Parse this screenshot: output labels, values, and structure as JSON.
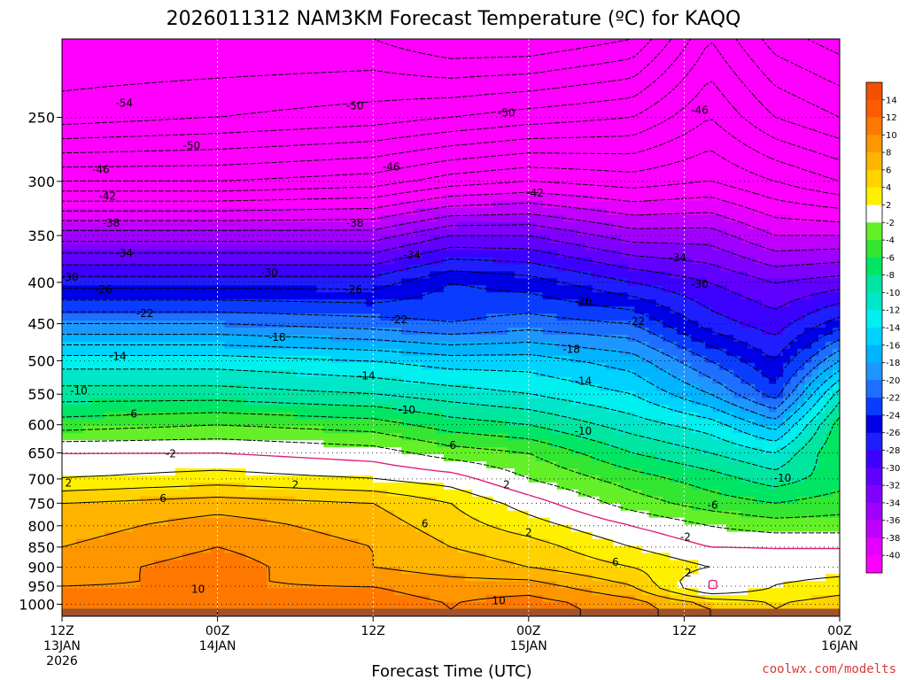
{
  "chart_data": {
    "type": "heatmap",
    "title": "2026011312 NAM3KM Forecast Temperature (ºC) for KAQQ",
    "xlabel": "Forecast Time (UTC)",
    "ylabel": "",
    "y_scale": "log-pressure",
    "ylim": [
      1035,
      200
    ],
    "xlim": [
      0,
      60
    ],
    "yticks": [
      250,
      300,
      350,
      400,
      450,
      500,
      550,
      600,
      650,
      700,
      750,
      800,
      850,
      900,
      950,
      1000
    ],
    "ytick_labels": [
      "250",
      "300",
      "350",
      "400",
      "450",
      "500",
      "550",
      "600",
      "650",
      "700",
      "750",
      "800",
      "850",
      "900",
      "950",
      "1000"
    ],
    "xticks": [
      {
        "hour": 0,
        "l1": "12Z",
        "l2": "13JAN",
        "l3": "2026"
      },
      {
        "hour": 12,
        "l1": "00Z",
        "l2": "14JAN",
        "l3": ""
      },
      {
        "hour": 24,
        "l1": "12Z",
        "l2": "",
        "l3": ""
      },
      {
        "hour": 36,
        "l1": "00Z",
        "l2": "15JAN",
        "l3": ""
      },
      {
        "hour": 48,
        "l1": "12Z",
        "l2": "",
        "l3": ""
      },
      {
        "hour": 60,
        "l1": "00Z",
        "l2": "16JAN",
        "l3": ""
      }
    ],
    "grid": "dotted",
    "colorbar": {
      "position": "right",
      "levels": [
        -40,
        -38,
        -36,
        -34,
        -32,
        -30,
        -28,
        -26,
        -24,
        -22,
        -20,
        -18,
        -16,
        -14,
        -12,
        -10,
        -8,
        -6,
        -4,
        -2,
        2,
        4,
        6,
        8,
        10,
        12,
        14
      ],
      "labels": [
        "14",
        "12",
        "10",
        "8",
        "6",
        "4",
        "2",
        "-2",
        "-4",
        "-6",
        "-8",
        "-10",
        "-12",
        "-14",
        "-16",
        "-18",
        "-20",
        "-22",
        "-24",
        "-26",
        "-28",
        "-30",
        "-32",
        "-34",
        "-36",
        "-38",
        "-40"
      ],
      "colors": [
        "#ff00ff",
        "#e600ff",
        "#c000ff",
        "#a000ff",
        "#8000ff",
        "#6000ff",
        "#3c00ff",
        "#1e1eff",
        "#0000e6",
        "#0a3cff",
        "#1e6eff",
        "#1e96ff",
        "#00b4ff",
        "#00d2ff",
        "#00f0f0",
        "#00e6c8",
        "#00e6a0",
        "#00e664",
        "#32e632",
        "#64f028",
        "#ffffff",
        "#fff000",
        "#ffd200",
        "#ffb400",
        "#ff9600",
        "#ff7800",
        "#ff5a00",
        "#f05000"
      ]
    },
    "freezing_line_color": "#e0207a",
    "ground_color": "#a0522d",
    "profile_columns": [
      {
        "hour": 0,
        "t": [
          [
            200,
            -58
          ],
          [
            250,
            -55
          ],
          [
            300,
            -46
          ],
          [
            350,
            -35
          ],
          [
            400,
            -27
          ],
          [
            450,
            -20
          ],
          [
            500,
            -13
          ],
          [
            550,
            -9
          ],
          [
            600,
            -5
          ],
          [
            650,
            0
          ],
          [
            700,
            2
          ],
          [
            750,
            6
          ],
          [
            800,
            7
          ],
          [
            850,
            8
          ],
          [
            900,
            9
          ],
          [
            950,
            10
          ],
          [
            1000,
            11
          ],
          [
            1035,
            11
          ]
        ]
      },
      {
        "hour": 12,
        "t": [
          [
            200,
            -58
          ],
          [
            250,
            -54
          ],
          [
            300,
            -46
          ],
          [
            350,
            -35
          ],
          [
            400,
            -27
          ],
          [
            450,
            -20
          ],
          [
            500,
            -13
          ],
          [
            550,
            -9
          ],
          [
            600,
            -4
          ],
          [
            650,
            0
          ],
          [
            700,
            3
          ],
          [
            750,
            7
          ],
          [
            800,
            9
          ],
          [
            850,
            10
          ],
          [
            900,
            11
          ],
          [
            950,
            10
          ],
          [
            1000,
            12
          ],
          [
            1035,
            12
          ]
        ]
      },
      {
        "hour": 24,
        "t": [
          [
            200,
            -58
          ],
          [
            250,
            -53
          ],
          [
            300,
            -45
          ],
          [
            350,
            -35
          ],
          [
            400,
            -27
          ],
          [
            450,
            -21
          ],
          [
            500,
            -14
          ],
          [
            550,
            -10
          ],
          [
            600,
            -5
          ],
          [
            650,
            -1
          ],
          [
            700,
            2
          ],
          [
            750,
            6
          ],
          [
            800,
            7
          ],
          [
            850,
            8
          ],
          [
            900,
            8
          ],
          [
            950,
            10
          ],
          [
            1000,
            11
          ],
          [
            1035,
            11
          ]
        ]
      },
      {
        "hour": 30,
        "t": [
          [
            200,
            -60
          ],
          [
            250,
            -52
          ],
          [
            300,
            -43
          ],
          [
            350,
            -32
          ],
          [
            400,
            -24
          ],
          [
            450,
            -22
          ],
          [
            500,
            -15
          ],
          [
            550,
            -11
          ],
          [
            600,
            -7
          ],
          [
            650,
            -3
          ],
          [
            700,
            1
          ],
          [
            750,
            4
          ],
          [
            800,
            5
          ],
          [
            850,
            6
          ],
          [
            900,
            7
          ],
          [
            950,
            9
          ],
          [
            1000,
            10
          ],
          [
            1035,
            10
          ]
        ]
      },
      {
        "hour": 36,
        "t": [
          [
            200,
            -60
          ],
          [
            250,
            -51
          ],
          [
            300,
            -42
          ],
          [
            350,
            -32
          ],
          [
            400,
            -25
          ],
          [
            450,
            -21
          ],
          [
            500,
            -15
          ],
          [
            550,
            -12
          ],
          [
            600,
            -8
          ],
          [
            650,
            -4
          ],
          [
            700,
            -2
          ],
          [
            750,
            1
          ],
          [
            800,
            3
          ],
          [
            850,
            5
          ],
          [
            900,
            6
          ],
          [
            950,
            9
          ],
          [
            1000,
            11
          ],
          [
            1035,
            11
          ]
        ]
      },
      {
        "hour": 44,
        "t": [
          [
            200,
            -58
          ],
          [
            250,
            -50
          ],
          [
            300,
            -43
          ],
          [
            350,
            -35
          ],
          [
            400,
            -28
          ],
          [
            450,
            -22
          ],
          [
            500,
            -17
          ],
          [
            550,
            -14
          ],
          [
            600,
            -11
          ],
          [
            650,
            -8
          ],
          [
            700,
            -5
          ],
          [
            750,
            -3
          ],
          [
            800,
            0
          ],
          [
            850,
            2
          ],
          [
            900,
            4
          ],
          [
            950,
            6
          ],
          [
            1000,
            9
          ],
          [
            1035,
            9
          ]
        ]
      },
      {
        "hour": 50,
        "t": [
          [
            200,
            -50
          ],
          [
            250,
            -46
          ],
          [
            300,
            -42
          ],
          [
            350,
            -35
          ],
          [
            400,
            -30
          ],
          [
            450,
            -27
          ],
          [
            500,
            -22
          ],
          [
            550,
            -18
          ],
          [
            600,
            -13
          ],
          [
            650,
            -10
          ],
          [
            700,
            -7
          ],
          [
            750,
            -5
          ],
          [
            800,
            -2
          ],
          [
            850,
            0
          ],
          [
            900,
            2
          ],
          [
            950,
            -1
          ],
          [
            1000,
            6
          ],
          [
            1035,
            6
          ]
        ]
      },
      {
        "hour": 55,
        "t": [
          [
            200,
            -55
          ],
          [
            250,
            -50
          ],
          [
            300,
            -44
          ],
          [
            350,
            -38
          ],
          [
            400,
            -32
          ],
          [
            450,
            -29
          ],
          [
            500,
            -26
          ],
          [
            550,
            -23
          ],
          [
            600,
            -17
          ],
          [
            650,
            -12
          ],
          [
            700,
            -9
          ],
          [
            750,
            -6
          ],
          [
            800,
            -3
          ],
          [
            850,
            0
          ],
          [
            900,
            1
          ],
          [
            950,
            2
          ],
          [
            1000,
            4
          ],
          [
            1035,
            4
          ]
        ]
      },
      {
        "hour": 60,
        "t": [
          [
            200,
            -57
          ],
          [
            250,
            -52
          ],
          [
            300,
            -46
          ],
          [
            350,
            -38
          ],
          [
            400,
            -31
          ],
          [
            450,
            -25
          ],
          [
            500,
            -18
          ],
          [
            550,
            -11
          ],
          [
            600,
            -7
          ],
          [
            650,
            -6
          ],
          [
            700,
            -7
          ],
          [
            750,
            -5
          ],
          [
            800,
            -3
          ],
          [
            850,
            0
          ],
          [
            900,
            1
          ],
          [
            950,
            3
          ],
          [
            1000,
            5
          ],
          [
            1035,
            5
          ]
        ]
      }
    ],
    "contour_labels": [
      {
        "hour": 4.8,
        "p": 240,
        "text": "-54"
      },
      {
        "hour": 10,
        "p": 271,
        "text": "-50"
      },
      {
        "hour": 3,
        "p": 290,
        "text": "-46"
      },
      {
        "hour": 3.5,
        "p": 313,
        "text": "-42"
      },
      {
        "hour": 3.8,
        "p": 338,
        "text": "-38"
      },
      {
        "hour": 4.8,
        "p": 368,
        "text": "-34"
      },
      {
        "hour": 0.6,
        "p": 394,
        "text": "-30"
      },
      {
        "hour": 3.2,
        "p": 408,
        "text": "-26"
      },
      {
        "hour": 6.4,
        "p": 437,
        "text": "-22"
      },
      {
        "hour": 4.3,
        "p": 494,
        "text": "-14"
      },
      {
        "hour": 1.3,
        "p": 545,
        "text": "-10"
      },
      {
        "hour": 5.4,
        "p": 582,
        "text": "-6"
      },
      {
        "hour": 8.4,
        "p": 652,
        "text": "-2"
      },
      {
        "hour": 0.5,
        "p": 708,
        "text": "2"
      },
      {
        "hour": 7.8,
        "p": 740,
        "text": "6"
      },
      {
        "hour": 10.5,
        "p": 958,
        "text": "10"
      },
      {
        "hour": 22.6,
        "p": 242,
        "text": "-50"
      },
      {
        "hour": 25.4,
        "p": 288,
        "text": "-46"
      },
      {
        "hour": 22.6,
        "p": 338,
        "text": "-38"
      },
      {
        "hour": 16,
        "p": 389,
        "text": "-30"
      },
      {
        "hour": 22.5,
        "p": 408,
        "text": "-26"
      },
      {
        "hour": 16.6,
        "p": 468,
        "text": "-18"
      },
      {
        "hour": 18,
        "p": 712,
        "text": "2"
      },
      {
        "hour": 23.5,
        "p": 522,
        "text": "-14"
      },
      {
        "hour": 26.6,
        "p": 575,
        "text": "-10"
      },
      {
        "hour": 26,
        "p": 445,
        "text": "-22"
      },
      {
        "hour": 27,
        "p": 370,
        "text": "-34"
      },
      {
        "hour": 36.5,
        "p": 310,
        "text": "-42"
      },
      {
        "hour": 40.2,
        "p": 422,
        "text": "-26"
      },
      {
        "hour": 39.3,
        "p": 484,
        "text": "-18"
      },
      {
        "hour": 40.2,
        "p": 530,
        "text": "-14"
      },
      {
        "hour": 40.2,
        "p": 611,
        "text": "-10"
      },
      {
        "hour": 30,
        "p": 636,
        "text": "-6"
      },
      {
        "hour": 34.3,
        "p": 712,
        "text": "2"
      },
      {
        "hour": 36,
        "p": 816,
        "text": "2"
      },
      {
        "hour": 28,
        "p": 795,
        "text": "6"
      },
      {
        "hour": 42.7,
        "p": 888,
        "text": "6"
      },
      {
        "hour": 33.7,
        "p": 990,
        "text": "10"
      },
      {
        "hour": 44.3,
        "p": 447,
        "text": "-22"
      },
      {
        "hour": 47.5,
        "p": 373,
        "text": "-34"
      },
      {
        "hour": 49.2,
        "p": 402,
        "text": "-30"
      },
      {
        "hour": 49.2,
        "p": 245,
        "text": "-46"
      },
      {
        "hour": 55.6,
        "p": 698,
        "text": "-10"
      },
      {
        "hour": 50.2,
        "p": 754,
        "text": "-6"
      },
      {
        "hour": 48.1,
        "p": 826,
        "text": "-2"
      },
      {
        "hour": 48.3,
        "p": 915,
        "text": "2"
      },
      {
        "hour": 34.3,
        "p": 247,
        "text": "-50"
      }
    ],
    "credit": "coolwx.com/modelts"
  }
}
